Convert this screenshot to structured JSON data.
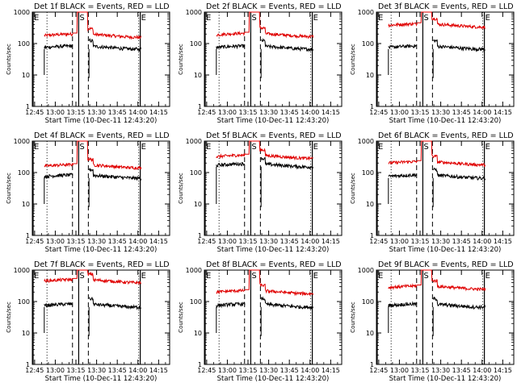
{
  "figure": {
    "background": "#ffffff",
    "axis_color": "#000000"
  },
  "chart_data": {
    "type": "line",
    "panels": [
      {
        "title": "Det 1f BLACK = Events, RED = LLD"
      },
      {
        "title": "Det 2f BLACK = Events, RED = LLD"
      },
      {
        "title": "Det 3f BLACK = Events, RED = LLD"
      },
      {
        "title": "Det 4f BLACK = Events, RED = LLD"
      },
      {
        "title": "Det 5f BLACK = Events, RED = LLD"
      },
      {
        "title": "Det 6f BLACK = Events, RED = LLD"
      },
      {
        "title": "Det 7f BLACK = Events, RED = LLD"
      },
      {
        "title": "Det 8f BLACK = Events, RED = LLD"
      },
      {
        "title": "Det 9f BLACK = Events, RED = LLD"
      }
    ],
    "xlabel": "Start Time (10-Dec-11 12:43:20)",
    "ylabel": "Counts/sec",
    "x_ticks": [
      "12:45",
      "13:00",
      "13:15",
      "13:30",
      "13:45",
      "14:00",
      "14:15"
    ],
    "y_ticks": [
      "1",
      "10",
      "100",
      "1000"
    ],
    "y_scale": "log",
    "ylim": [
      1,
      1000
    ],
    "xlim": [
      "12:43:20",
      "14:23:00"
    ],
    "grid": false,
    "series_colors": {
      "events": "#000000",
      "lld": "#e00000"
    },
    "markers": [
      {
        "label": "E",
        "time": "12:43:20",
        "style": "solid"
      },
      {
        "label": "S",
        "time": "13:17:00",
        "style": "solid"
      },
      {
        "label": "E",
        "time": "14:01:40",
        "style": "solid"
      }
    ],
    "vlines": [
      {
        "time": "12:54:00",
        "style": "dotted"
      },
      {
        "time": "13:12:30",
        "style": "dashed"
      },
      {
        "time": "13:24:00",
        "style": "dashed"
      },
      {
        "time": "14:00:30",
        "style": "dotted"
      }
    ],
    "events_levels": [
      75,
      75,
      75,
      75,
      170,
      75,
      75,
      75,
      75
    ],
    "lld_levels": [
      180,
      190,
      380,
      160,
      320,
      200,
      450,
      200,
      280
    ]
  }
}
